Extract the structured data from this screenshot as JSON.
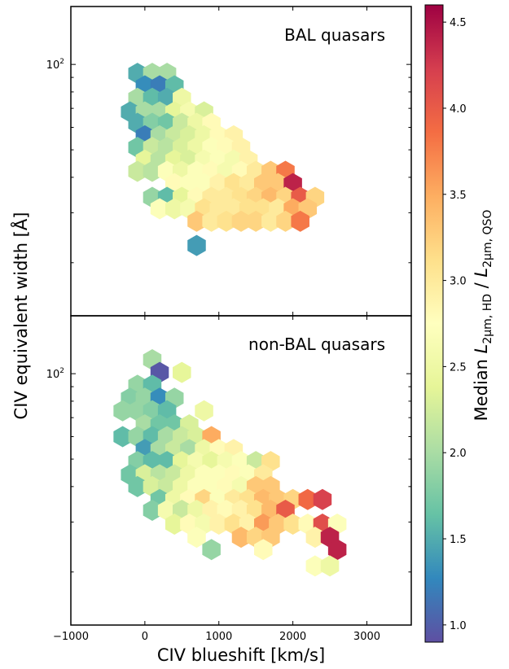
{
  "chart_data": {
    "type": "hexbin",
    "xlabel": "CIV blueshift [km/s]",
    "ylabel": "CIV equivalent width [Å]",
    "xlim": [
      -1000,
      3600
    ],
    "ylim": [
      13,
      160
    ],
    "y_scale": "log",
    "x_ticks": [
      -1000,
      0,
      1000,
      2000,
      3000
    ],
    "x_tick_labels": [
      "−1000",
      "0",
      "1000",
      "2000",
      "3000"
    ],
    "y_ticks": [
      100
    ],
    "y_tick_labels": [
      "10",
      "2"
    ],
    "colorbar": {
      "label": "Median L2µm,HD / L2µm,QSO",
      "label_parts": {
        "prefix": "Median ",
        "num_base": "L",
        "num_sub": "2µm, HD",
        "sep": " / ",
        "den_base": "L",
        "den_sub": "2µm, QSO"
      },
      "range": [
        0.9,
        4.6
      ],
      "ticks": [
        1.0,
        1.5,
        2.0,
        2.5,
        3.0,
        3.5,
        4.0,
        4.5
      ],
      "tick_labels": [
        "1.0",
        "1.5",
        "2.0",
        "2.5",
        "3.0",
        "3.5",
        "4.0",
        "4.5"
      ],
      "colormap": "Spectral_r"
    },
    "panels": [
      {
        "label": "BAL quasars",
        "hexes": [
          {
            "x": -100,
            "y": 93,
            "v": 1.5
          },
          {
            "x": 100,
            "y": 93,
            "v": 2.0
          },
          {
            "x": 300,
            "y": 93,
            "v": 2.0
          },
          {
            "x": 0,
            "y": 84,
            "v": 1.3
          },
          {
            "x": 200,
            "y": 84,
            "v": 1.2
          },
          {
            "x": 400,
            "y": 84,
            "v": 1.6
          },
          {
            "x": -100,
            "y": 76,
            "v": 2.0
          },
          {
            "x": 100,
            "y": 76,
            "v": 1.6
          },
          {
            "x": 300,
            "y": 76,
            "v": 1.5
          },
          {
            "x": 500,
            "y": 76,
            "v": 2.5
          },
          {
            "x": -200,
            "y": 68,
            "v": 1.5
          },
          {
            "x": 0,
            "y": 68,
            "v": 2.0
          },
          {
            "x": 200,
            "y": 68,
            "v": 2.0
          },
          {
            "x": 400,
            "y": 68,
            "v": 2.4
          },
          {
            "x": 600,
            "y": 68,
            "v": 2.6
          },
          {
            "x": 800,
            "y": 68,
            "v": 2.3
          },
          {
            "x": -100,
            "y": 62,
            "v": 1.5
          },
          {
            "x": 100,
            "y": 62,
            "v": 1.8
          },
          {
            "x": 300,
            "y": 62,
            "v": 1.7
          },
          {
            "x": 500,
            "y": 62,
            "v": 2.2
          },
          {
            "x": 700,
            "y": 62,
            "v": 2.5
          },
          {
            "x": 900,
            "y": 62,
            "v": 2.8
          },
          {
            "x": 0,
            "y": 56,
            "v": 1.2
          },
          {
            "x": 200,
            "y": 56,
            "v": 2.0
          },
          {
            "x": 400,
            "y": 56,
            "v": 2.2
          },
          {
            "x": 600,
            "y": 56,
            "v": 2.3
          },
          {
            "x": 800,
            "y": 56,
            "v": 2.5
          },
          {
            "x": 1000,
            "y": 56,
            "v": 2.8
          },
          {
            "x": 1200,
            "y": 56,
            "v": 2.9
          },
          {
            "x": -100,
            "y": 51,
            "v": 1.7
          },
          {
            "x": 100,
            "y": 51,
            "v": 2.2
          },
          {
            "x": 300,
            "y": 51,
            "v": 2.1
          },
          {
            "x": 500,
            "y": 51,
            "v": 2.3
          },
          {
            "x": 700,
            "y": 51,
            "v": 2.5
          },
          {
            "x": 900,
            "y": 51,
            "v": 2.7
          },
          {
            "x": 1100,
            "y": 51,
            "v": 2.8
          },
          {
            "x": 1300,
            "y": 51,
            "v": 2.9
          },
          {
            "x": 0,
            "y": 46,
            "v": 2.4
          },
          {
            "x": 200,
            "y": 46,
            "v": 2.1
          },
          {
            "x": 400,
            "y": 46,
            "v": 2.4
          },
          {
            "x": 600,
            "y": 46,
            "v": 2.3
          },
          {
            "x": 800,
            "y": 46,
            "v": 2.6
          },
          {
            "x": 1000,
            "y": 46,
            "v": 2.7
          },
          {
            "x": 1200,
            "y": 46,
            "v": 2.6
          },
          {
            "x": 1400,
            "y": 46,
            "v": 2.9
          },
          {
            "x": -100,
            "y": 42,
            "v": 2.2
          },
          {
            "x": 100,
            "y": 42,
            "v": 2.1
          },
          {
            "x": 300,
            "y": 42,
            "v": 2.7
          },
          {
            "x": 500,
            "y": 42,
            "v": 2.5
          },
          {
            "x": 700,
            "y": 42,
            "v": 2.7
          },
          {
            "x": 900,
            "y": 42,
            "v": 2.8
          },
          {
            "x": 1100,
            "y": 42,
            "v": 2.6
          },
          {
            "x": 1300,
            "y": 42,
            "v": 2.8
          },
          {
            "x": 1500,
            "y": 42,
            "v": 3.0
          },
          {
            "x": 1700,
            "y": 42,
            "v": 3.3
          },
          {
            "x": 1900,
            "y": 42,
            "v": 3.8
          },
          {
            "x": 400,
            "y": 38,
            "v": 2.8
          },
          {
            "x": 600,
            "y": 38,
            "v": 2.7
          },
          {
            "x": 800,
            "y": 38,
            "v": 2.7
          },
          {
            "x": 1000,
            "y": 38,
            "v": 2.9
          },
          {
            "x": 1200,
            "y": 38,
            "v": 3.1
          },
          {
            "x": 1400,
            "y": 38,
            "v": 3.0
          },
          {
            "x": 1600,
            "y": 38,
            "v": 3.3
          },
          {
            "x": 1800,
            "y": 38,
            "v": 3.3
          },
          {
            "x": 2000,
            "y": 38,
            "v": 4.4
          },
          {
            "x": 100,
            "y": 34,
            "v": 1.9
          },
          {
            "x": 300,
            "y": 34,
            "v": 1.6
          },
          {
            "x": 500,
            "y": 34,
            "v": 2.4
          },
          {
            "x": 700,
            "y": 34,
            "v": 2.8
          },
          {
            "x": 900,
            "y": 34,
            "v": 3.0
          },
          {
            "x": 1100,
            "y": 34,
            "v": 3.0
          },
          {
            "x": 1300,
            "y": 34,
            "v": 3.1
          },
          {
            "x": 1500,
            "y": 34,
            "v": 3.2
          },
          {
            "x": 1700,
            "y": 34,
            "v": 3.4
          },
          {
            "x": 1900,
            "y": 34,
            "v": 3.2
          },
          {
            "x": 2100,
            "y": 34,
            "v": 4.0
          },
          {
            "x": 2300,
            "y": 34,
            "v": 3.2
          },
          {
            "x": 200,
            "y": 31,
            "v": 2.7
          },
          {
            "x": 400,
            "y": 31,
            "v": 2.5
          },
          {
            "x": 600,
            "y": 31,
            "v": 2.6
          },
          {
            "x": 800,
            "y": 31,
            "v": 3.1
          },
          {
            "x": 1000,
            "y": 31,
            "v": 3.0
          },
          {
            "x": 1200,
            "y": 31,
            "v": 3.0
          },
          {
            "x": 1400,
            "y": 31,
            "v": 3.1
          },
          {
            "x": 1600,
            "y": 31,
            "v": 3.1
          },
          {
            "x": 1800,
            "y": 31,
            "v": 3.0
          },
          {
            "x": 2000,
            "y": 31,
            "v": 3.5
          },
          {
            "x": 2200,
            "y": 31,
            "v": 3.3
          },
          {
            "x": 700,
            "y": 28,
            "v": 3.3
          },
          {
            "x": 900,
            "y": 28,
            "v": 3.0
          },
          {
            "x": 1100,
            "y": 28,
            "v": 3.1
          },
          {
            "x": 1300,
            "y": 28,
            "v": 3.2
          },
          {
            "x": 1500,
            "y": 28,
            "v": 3.2
          },
          {
            "x": 1700,
            "y": 28,
            "v": 3.0
          },
          {
            "x": 1900,
            "y": 28,
            "v": 3.2
          },
          {
            "x": 2100,
            "y": 28,
            "v": 3.8
          },
          {
            "x": 700,
            "y": 23,
            "v": 1.4
          }
        ]
      },
      {
        "label": "non-BAL quasars",
        "hexes": [
          {
            "x": 100,
            "y": 112,
            "v": 2.0
          },
          {
            "x": 200,
            "y": 101,
            "v": 0.95
          },
          {
            "x": 500,
            "y": 101,
            "v": 2.4
          },
          {
            "x": -100,
            "y": 91,
            "v": 1.9
          },
          {
            "x": 100,
            "y": 91,
            "v": 1.6
          },
          {
            "x": -200,
            "y": 82,
            "v": 1.8
          },
          {
            "x": 0,
            "y": 82,
            "v": 1.9
          },
          {
            "x": 200,
            "y": 82,
            "v": 1.3
          },
          {
            "x": 400,
            "y": 82,
            "v": 1.9
          },
          {
            "x": -300,
            "y": 74,
            "v": 1.9
          },
          {
            "x": -100,
            "y": 74,
            "v": 1.9
          },
          {
            "x": 100,
            "y": 74,
            "v": 1.8
          },
          {
            "x": 300,
            "y": 74,
            "v": 1.6
          },
          {
            "x": 800,
            "y": 74,
            "v": 2.5
          },
          {
            "x": 0,
            "y": 66,
            "v": 2.0
          },
          {
            "x": 200,
            "y": 66,
            "v": 1.7
          },
          {
            "x": 400,
            "y": 66,
            "v": 1.7
          },
          {
            "x": 600,
            "y": 66,
            "v": 2.3
          },
          {
            "x": -300,
            "y": 60,
            "v": 1.6
          },
          {
            "x": -100,
            "y": 60,
            "v": 1.9
          },
          {
            "x": 100,
            "y": 60,
            "v": 1.6
          },
          {
            "x": 300,
            "y": 60,
            "v": 2.0
          },
          {
            "x": 500,
            "y": 60,
            "v": 2.2
          },
          {
            "x": 700,
            "y": 60,
            "v": 2.3
          },
          {
            "x": 900,
            "y": 60,
            "v": 3.5
          },
          {
            "x": 0,
            "y": 54,
            "v": 1.4
          },
          {
            "x": 200,
            "y": 54,
            "v": 2.0
          },
          {
            "x": 400,
            "y": 54,
            "v": 2.2
          },
          {
            "x": 600,
            "y": 54,
            "v": 2.0
          },
          {
            "x": 800,
            "y": 54,
            "v": 2.5
          },
          {
            "x": 1000,
            "y": 54,
            "v": 2.8
          },
          {
            "x": 1200,
            "y": 54,
            "v": 2.9
          },
          {
            "x": -100,
            "y": 49,
            "v": 1.8
          },
          {
            "x": 100,
            "y": 49,
            "v": 1.6
          },
          {
            "x": 300,
            "y": 49,
            "v": 1.6
          },
          {
            "x": 500,
            "y": 49,
            "v": 2.4
          },
          {
            "x": 700,
            "y": 49,
            "v": 2.6
          },
          {
            "x": 900,
            "y": 49,
            "v": 2.4
          },
          {
            "x": 1100,
            "y": 49,
            "v": 2.6
          },
          {
            "x": 1300,
            "y": 49,
            "v": 2.7
          },
          {
            "x": 1500,
            "y": 49,
            "v": 2.2
          },
          {
            "x": 1700,
            "y": 49,
            "v": 3.1
          },
          {
            "x": -200,
            "y": 44,
            "v": 1.7
          },
          {
            "x": 0,
            "y": 44,
            "v": 2.3
          },
          {
            "x": 200,
            "y": 44,
            "v": 2.1
          },
          {
            "x": 400,
            "y": 44,
            "v": 2.2
          },
          {
            "x": 600,
            "y": 44,
            "v": 2.5
          },
          {
            "x": 800,
            "y": 44,
            "v": 2.7
          },
          {
            "x": 1000,
            "y": 44,
            "v": 2.7
          },
          {
            "x": 1200,
            "y": 44,
            "v": 2.8
          },
          {
            "x": 1400,
            "y": 44,
            "v": 2.7
          },
          {
            "x": 1600,
            "y": 44,
            "v": 3.0
          },
          {
            "x": -100,
            "y": 40,
            "v": 1.7
          },
          {
            "x": 100,
            "y": 40,
            "v": 2.3
          },
          {
            "x": 300,
            "y": 40,
            "v": 2.2
          },
          {
            "x": 500,
            "y": 40,
            "v": 2.5
          },
          {
            "x": 700,
            "y": 40,
            "v": 2.7
          },
          {
            "x": 900,
            "y": 40,
            "v": 2.7
          },
          {
            "x": 1100,
            "y": 40,
            "v": 2.8
          },
          {
            "x": 1300,
            "y": 40,
            "v": 2.6
          },
          {
            "x": 1500,
            "y": 40,
            "v": 3.3
          },
          {
            "x": 1700,
            "y": 40,
            "v": 3.3
          },
          {
            "x": 200,
            "y": 36,
            "v": 1.7
          },
          {
            "x": 400,
            "y": 36,
            "v": 2.5
          },
          {
            "x": 600,
            "y": 36,
            "v": 2.8
          },
          {
            "x": 800,
            "y": 36,
            "v": 3.2
          },
          {
            "x": 1000,
            "y": 36,
            "v": 2.7
          },
          {
            "x": 1200,
            "y": 36,
            "v": 3.0
          },
          {
            "x": 1400,
            "y": 36,
            "v": 3.1
          },
          {
            "x": 1600,
            "y": 36,
            "v": 3.4
          },
          {
            "x": 1800,
            "y": 36,
            "v": 3.3
          },
          {
            "x": 2000,
            "y": 36,
            "v": 3.2
          },
          {
            "x": 2200,
            "y": 36,
            "v": 3.9
          },
          {
            "x": 2400,
            "y": 36,
            "v": 4.2
          },
          {
            "x": 100,
            "y": 33,
            "v": 1.8
          },
          {
            "x": 300,
            "y": 33,
            "v": 2.6
          },
          {
            "x": 500,
            "y": 33,
            "v": 2.2
          },
          {
            "x": 700,
            "y": 33,
            "v": 2.5
          },
          {
            "x": 900,
            "y": 33,
            "v": 2.9
          },
          {
            "x": 1100,
            "y": 33,
            "v": 2.8
          },
          {
            "x": 1300,
            "y": 33,
            "v": 2.9
          },
          {
            "x": 1500,
            "y": 33,
            "v": 3.1
          },
          {
            "x": 1700,
            "y": 33,
            "v": 3.4
          },
          {
            "x": 1900,
            "y": 33,
            "v": 4.0
          },
          {
            "x": 400,
            "y": 29.5,
            "v": 2.4
          },
          {
            "x": 600,
            "y": 29.5,
            "v": 2.8
          },
          {
            "x": 800,
            "y": 29.5,
            "v": 2.6
          },
          {
            "x": 1000,
            "y": 29.5,
            "v": 2.9
          },
          {
            "x": 1200,
            "y": 29.5,
            "v": 3.1
          },
          {
            "x": 1400,
            "y": 29.5,
            "v": 2.9
          },
          {
            "x": 1600,
            "y": 29.5,
            "v": 3.6
          },
          {
            "x": 1800,
            "y": 29.5,
            "v": 3.3
          },
          {
            "x": 2000,
            "y": 29.5,
            "v": 3.1
          },
          {
            "x": 2200,
            "y": 29.5,
            "v": 2.8
          },
          {
            "x": 2400,
            "y": 29.5,
            "v": 4.1
          },
          {
            "x": 2600,
            "y": 29.5,
            "v": 2.7
          },
          {
            "x": 700,
            "y": 26.5,
            "v": 2.7
          },
          {
            "x": 1300,
            "y": 26.5,
            "v": 3.4
          },
          {
            "x": 1500,
            "y": 26.5,
            "v": 3.2
          },
          {
            "x": 1700,
            "y": 26.5,
            "v": 3.3
          },
          {
            "x": 2300,
            "y": 26.5,
            "v": 2.9
          },
          {
            "x": 2500,
            "y": 26.5,
            "v": 4.4
          },
          {
            "x": 900,
            "y": 24,
            "v": 1.9
          },
          {
            "x": 1600,
            "y": 24,
            "v": 2.8
          },
          {
            "x": 2600,
            "y": 24,
            "v": 4.4
          },
          {
            "x": 2300,
            "y": 21,
            "v": 2.7
          },
          {
            "x": 2500,
            "y": 21,
            "v": 2.5
          }
        ]
      }
    ]
  }
}
